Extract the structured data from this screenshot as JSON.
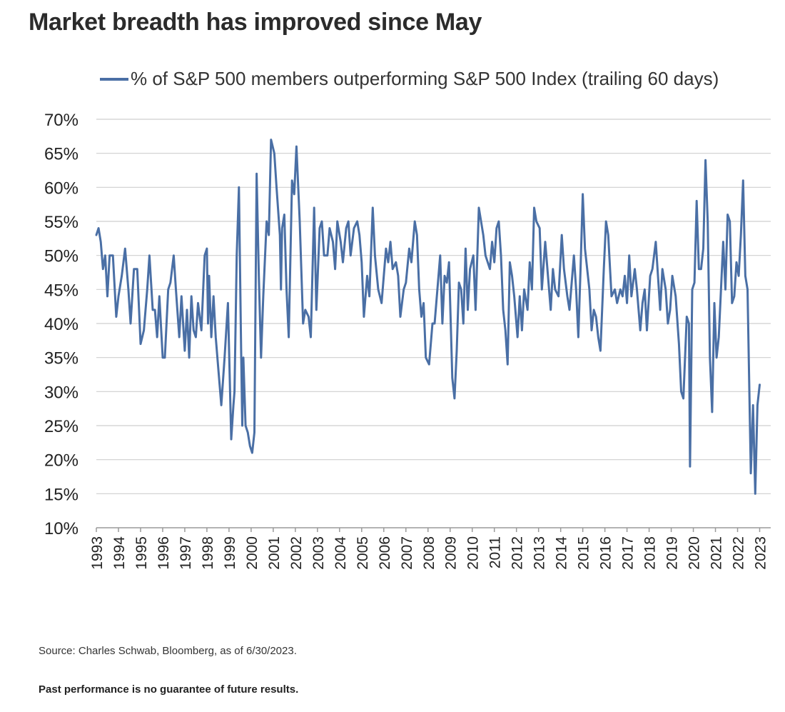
{
  "page": {
    "source": "Source: Charles Schwab, Bloomberg, as of 6/30/2023.",
    "disclaimer": "Past performance is no guarantee of future results."
  },
  "chart_data": {
    "type": "line",
    "title": "Market breadth has improved since May",
    "xlabel": "",
    "ylabel": "",
    "ylim": [
      10,
      70
    ],
    "xlim": [
      1993,
      2023.5
    ],
    "grid": true,
    "legend": "top",
    "y_ticks": [
      10,
      15,
      20,
      25,
      30,
      35,
      40,
      45,
      50,
      55,
      60,
      65,
      70
    ],
    "y_tick_labels": [
      "10%",
      "15%",
      "20%",
      "25%",
      "30%",
      "35%",
      "40%",
      "45%",
      "50%",
      "55%",
      "60%",
      "65%",
      "70%"
    ],
    "x_ticks": [
      1993,
      1994,
      1995,
      1996,
      1997,
      1998,
      1999,
      2000,
      2001,
      2002,
      2003,
      2004,
      2005,
      2006,
      2007,
      2008,
      2009,
      2010,
      2011,
      2012,
      2013,
      2014,
      2015,
      2016,
      2017,
      2018,
      2019,
      2020,
      2021,
      2022,
      2023
    ],
    "x_tick_labels": [
      "1993",
      "1994",
      "1995",
      "1996",
      "1997",
      "1998",
      "1999",
      "2000",
      "2001",
      "2002",
      "2003",
      "2004",
      "2005",
      "2006",
      "2007",
      "2008",
      "2009",
      "2010",
      "2011",
      "2012",
      "2013",
      "2014",
      "2015",
      "2016",
      "2017",
      "2018",
      "2019",
      "2020",
      "2021",
      "2022",
      "2023"
    ],
    "series_color": "#4a6fa5",
    "series": [
      {
        "name": "% of S&P 500 members outperforming S&P 500 Index (trailing 60 days)",
        "points": [
          [
            1993.0,
            53
          ],
          [
            1993.1,
            54
          ],
          [
            1993.2,
            52
          ],
          [
            1993.3,
            48
          ],
          [
            1993.4,
            50
          ],
          [
            1993.5,
            44
          ],
          [
            1993.6,
            50
          ],
          [
            1993.75,
            50
          ],
          [
            1993.9,
            41
          ],
          [
            1994.0,
            44
          ],
          [
            1994.15,
            47
          ],
          [
            1994.3,
            51
          ],
          [
            1994.45,
            45
          ],
          [
            1994.55,
            40
          ],
          [
            1994.7,
            48
          ],
          [
            1994.85,
            48
          ],
          [
            1995.0,
            37
          ],
          [
            1995.15,
            39
          ],
          [
            1995.3,
            45
          ],
          [
            1995.4,
            50
          ],
          [
            1995.55,
            42
          ],
          [
            1995.65,
            42
          ],
          [
            1995.75,
            38
          ],
          [
            1995.85,
            44
          ],
          [
            1996.0,
            35
          ],
          [
            1996.1,
            35
          ],
          [
            1996.25,
            45
          ],
          [
            1996.35,
            46
          ],
          [
            1996.5,
            50
          ],
          [
            1996.6,
            45
          ],
          [
            1996.75,
            38
          ],
          [
            1996.85,
            44
          ],
          [
            1997.0,
            36
          ],
          [
            1997.1,
            42
          ],
          [
            1997.2,
            35
          ],
          [
            1997.3,
            44
          ],
          [
            1997.4,
            39
          ],
          [
            1997.5,
            38
          ],
          [
            1997.6,
            43
          ],
          [
            1997.75,
            39
          ],
          [
            1997.9,
            50
          ],
          [
            1998.0,
            51
          ],
          [
            1998.05,
            40
          ],
          [
            1998.1,
            47
          ],
          [
            1998.2,
            38
          ],
          [
            1998.3,
            44
          ],
          [
            1998.4,
            38
          ],
          [
            1998.5,
            34
          ],
          [
            1998.65,
            28
          ],
          [
            1998.8,
            35
          ],
          [
            1998.95,
            43
          ],
          [
            1999.1,
            23
          ],
          [
            1999.2,
            28
          ],
          [
            1999.25,
            30
          ],
          [
            1999.35,
            50
          ],
          [
            1999.45,
            60
          ],
          [
            1999.55,
            36
          ],
          [
            1999.6,
            25
          ],
          [
            1999.65,
            35
          ],
          [
            1999.75,
            25
          ],
          [
            1999.85,
            24
          ],
          [
            1999.95,
            22
          ],
          [
            2000.05,
            21
          ],
          [
            2000.15,
            24
          ],
          [
            2000.25,
            62
          ],
          [
            2000.35,
            47
          ],
          [
            2000.45,
            35
          ],
          [
            2000.55,
            44
          ],
          [
            2000.7,
            55
          ],
          [
            2000.8,
            53
          ],
          [
            2000.9,
            67
          ],
          [
            2001.05,
            65
          ],
          [
            2001.15,
            60
          ],
          [
            2001.3,
            53
          ],
          [
            2001.35,
            45
          ],
          [
            2001.4,
            54
          ],
          [
            2001.5,
            56
          ],
          [
            2001.6,
            45
          ],
          [
            2001.7,
            38
          ],
          [
            2001.85,
            61
          ],
          [
            2001.95,
            59
          ],
          [
            2002.05,
            66
          ],
          [
            2002.2,
            55
          ],
          [
            2002.35,
            40
          ],
          [
            2002.45,
            42
          ],
          [
            2002.6,
            41
          ],
          [
            2002.7,
            38
          ],
          [
            2002.85,
            57
          ],
          [
            2002.95,
            42
          ],
          [
            2003.1,
            54
          ],
          [
            2003.2,
            55
          ],
          [
            2003.3,
            50
          ],
          [
            2003.45,
            50
          ],
          [
            2003.55,
            54
          ],
          [
            2003.7,
            52
          ],
          [
            2003.8,
            48
          ],
          [
            2003.9,
            55
          ],
          [
            2004.05,
            52
          ],
          [
            2004.15,
            49
          ],
          [
            2004.3,
            54
          ],
          [
            2004.4,
            55
          ],
          [
            2004.5,
            50
          ],
          [
            2004.65,
            54
          ],
          [
            2004.8,
            55
          ],
          [
            2004.9,
            53
          ],
          [
            2005.0,
            49
          ],
          [
            2005.1,
            41
          ],
          [
            2005.25,
            47
          ],
          [
            2005.35,
            44
          ],
          [
            2005.5,
            57
          ],
          [
            2005.6,
            50
          ],
          [
            2005.75,
            45
          ],
          [
            2005.9,
            43
          ],
          [
            2006.1,
            51
          ],
          [
            2006.2,
            49
          ],
          [
            2006.3,
            52
          ],
          [
            2006.4,
            48
          ],
          [
            2006.55,
            49
          ],
          [
            2006.65,
            47
          ],
          [
            2006.75,
            41
          ],
          [
            2006.9,
            45
          ],
          [
            2007.0,
            46
          ],
          [
            2007.15,
            51
          ],
          [
            2007.25,
            49
          ],
          [
            2007.4,
            55
          ],
          [
            2007.5,
            53
          ],
          [
            2007.6,
            45
          ],
          [
            2007.7,
            41
          ],
          [
            2007.8,
            43
          ],
          [
            2007.9,
            35
          ],
          [
            2008.05,
            34
          ],
          [
            2008.2,
            40
          ],
          [
            2008.3,
            40
          ],
          [
            2008.45,
            46
          ],
          [
            2008.55,
            50
          ],
          [
            2008.65,
            40
          ],
          [
            2008.75,
            47
          ],
          [
            2008.85,
            46
          ],
          [
            2008.95,
            49
          ],
          [
            2009.1,
            32
          ],
          [
            2009.2,
            29
          ],
          [
            2009.3,
            36
          ],
          [
            2009.4,
            46
          ],
          [
            2009.5,
            45
          ],
          [
            2009.6,
            40
          ],
          [
            2009.7,
            51
          ],
          [
            2009.8,
            42
          ],
          [
            2009.9,
            48
          ],
          [
            2010.05,
            50
          ],
          [
            2010.15,
            42
          ],
          [
            2010.3,
            57
          ],
          [
            2010.4,
            55
          ],
          [
            2010.5,
            53
          ],
          [
            2010.6,
            50
          ],
          [
            2010.7,
            49
          ],
          [
            2010.8,
            48
          ],
          [
            2010.9,
            52
          ],
          [
            2011.0,
            49
          ],
          [
            2011.1,
            54
          ],
          [
            2011.2,
            55
          ],
          [
            2011.3,
            50
          ],
          [
            2011.4,
            42
          ],
          [
            2011.5,
            39
          ],
          [
            2011.6,
            34
          ],
          [
            2011.7,
            49
          ],
          [
            2011.8,
            47
          ],
          [
            2011.9,
            44
          ],
          [
            2012.05,
            38
          ],
          [
            2012.15,
            44
          ],
          [
            2012.25,
            39
          ],
          [
            2012.35,
            45
          ],
          [
            2012.5,
            42
          ],
          [
            2012.6,
            49
          ],
          [
            2012.7,
            45
          ],
          [
            2012.8,
            57
          ],
          [
            2012.9,
            55
          ],
          [
            2013.05,
            54
          ],
          [
            2013.15,
            45
          ],
          [
            2013.3,
            52
          ],
          [
            2013.45,
            46
          ],
          [
            2013.55,
            42
          ],
          [
            2013.65,
            48
          ],
          [
            2013.75,
            45
          ],
          [
            2013.9,
            44
          ],
          [
            2014.05,
            53
          ],
          [
            2014.15,
            48
          ],
          [
            2014.3,
            44
          ],
          [
            2014.4,
            42
          ],
          [
            2014.5,
            46
          ],
          [
            2014.6,
            50
          ],
          [
            2014.7,
            45
          ],
          [
            2014.8,
            38
          ],
          [
            2014.9,
            48
          ],
          [
            2015.0,
            59
          ],
          [
            2015.1,
            51
          ],
          [
            2015.2,
            48
          ],
          [
            2015.3,
            45
          ],
          [
            2015.4,
            39
          ],
          [
            2015.5,
            42
          ],
          [
            2015.6,
            41
          ],
          [
            2015.7,
            38
          ],
          [
            2015.8,
            36
          ],
          [
            2015.95,
            48
          ],
          [
            2016.05,
            55
          ],
          [
            2016.15,
            53
          ],
          [
            2016.3,
            44
          ],
          [
            2016.45,
            45
          ],
          [
            2016.55,
            43
          ],
          [
            2016.7,
            45
          ],
          [
            2016.8,
            44
          ],
          [
            2016.9,
            47
          ],
          [
            2017.0,
            43
          ],
          [
            2017.1,
            50
          ],
          [
            2017.2,
            44
          ],
          [
            2017.35,
            48
          ],
          [
            2017.45,
            45
          ],
          [
            2017.6,
            39
          ],
          [
            2017.7,
            43
          ],
          [
            2017.8,
            45
          ],
          [
            2017.9,
            39
          ],
          [
            2018.05,
            47
          ],
          [
            2018.15,
            48
          ],
          [
            2018.3,
            52
          ],
          [
            2018.4,
            47
          ],
          [
            2018.5,
            42
          ],
          [
            2018.6,
            48
          ],
          [
            2018.75,
            45
          ],
          [
            2018.85,
            40
          ],
          [
            2018.95,
            42
          ],
          [
            2019.05,
            47
          ],
          [
            2019.2,
            44
          ],
          [
            2019.35,
            37
          ],
          [
            2019.45,
            30
          ],
          [
            2019.55,
            29
          ],
          [
            2019.7,
            41
          ],
          [
            2019.8,
            40
          ],
          [
            2019.85,
            19
          ],
          [
            2019.95,
            45
          ],
          [
            2020.05,
            46
          ],
          [
            2020.15,
            58
          ],
          [
            2020.25,
            48
          ],
          [
            2020.35,
            48
          ],
          [
            2020.45,
            51
          ],
          [
            2020.55,
            64
          ],
          [
            2020.65,
            55
          ],
          [
            2020.75,
            35
          ],
          [
            2020.85,
            27
          ],
          [
            2020.95,
            43
          ],
          [
            2021.05,
            35
          ],
          [
            2021.15,
            38
          ],
          [
            2021.25,
            45
          ],
          [
            2021.35,
            52
          ],
          [
            2021.45,
            45
          ],
          [
            2021.55,
            56
          ],
          [
            2021.65,
            55
          ],
          [
            2021.75,
            43
          ],
          [
            2021.85,
            44
          ],
          [
            2021.95,
            49
          ],
          [
            2022.05,
            47
          ],
          [
            2022.15,
            53
          ],
          [
            2022.25,
            61
          ],
          [
            2022.35,
            47
          ],
          [
            2022.45,
            45
          ],
          [
            2022.6,
            18
          ],
          [
            2022.7,
            28
          ],
          [
            2022.8,
            15
          ],
          [
            2022.9,
            28
          ],
          [
            2023.0,
            31
          ]
        ]
      }
    ]
  }
}
